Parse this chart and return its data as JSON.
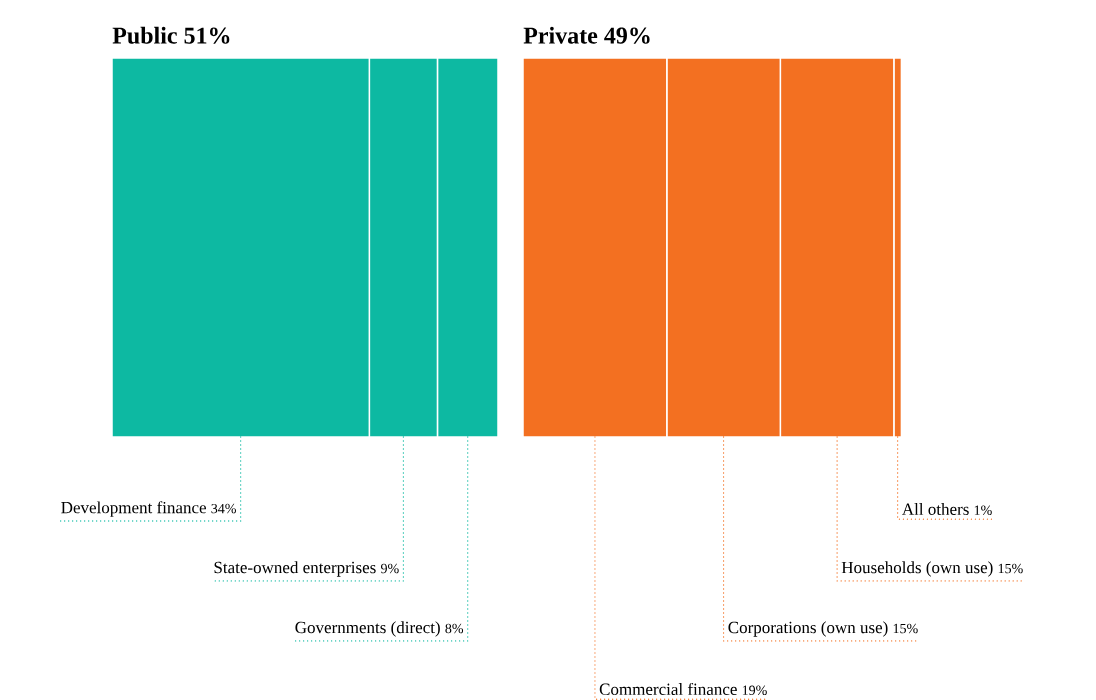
{
  "chart_data": [
    {
      "type": "bar",
      "title": "Public 51%",
      "orientation": "horizontal",
      "stacked": true,
      "categories": [
        null
      ],
      "tick_labels": false,
      "series": [
        {
          "name": "Development finance",
          "color": "#0db9a2",
          "values": [
            34
          ],
          "value_labels": [
            "34%"
          ]
        },
        {
          "name": "State-owned enterprises",
          "color": "#0db9a2",
          "values": [
            9
          ],
          "value_labels": [
            "9%"
          ]
        },
        {
          "name": "Governments (direct)",
          "color": "#0db9a2",
          "values": [
            8
          ],
          "value_labels": [
            "8%"
          ]
        }
      ]
    },
    {
      "type": "bar",
      "title": "Private 49%",
      "orientation": "horizontal",
      "stacked": true,
      "categories": [
        null
      ],
      "tick_labels": false,
      "series": [
        {
          "name": "Commercial finance",
          "color": "#f37021",
          "values": [
            19
          ],
          "value_labels": [
            "19%"
          ]
        },
        {
          "name": "Corporations (own use)",
          "color": "#f37021",
          "values": [
            15
          ],
          "value_labels": [
            "15%"
          ]
        },
        {
          "name": "Households (own use)",
          "color": "#f37021",
          "values": [
            15
          ],
          "value_labels": [
            "15%"
          ]
        },
        {
          "name": "All others",
          "color": "#f37021",
          "values": [
            1
          ],
          "value_labels": [
            "1%"
          ]
        }
      ]
    }
  ]
}
